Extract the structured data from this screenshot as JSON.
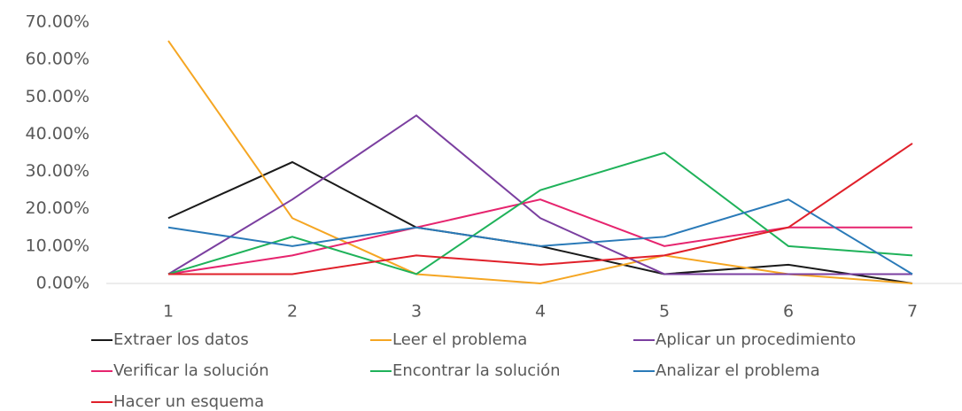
{
  "chart_data": {
    "type": "line",
    "categories": [
      "1",
      "2",
      "3",
      "4",
      "5",
      "6",
      "7"
    ],
    "ylim": [
      0,
      70
    ],
    "yticks": [
      {
        "value": 0,
        "label": "0.00%"
      },
      {
        "value": 10,
        "label": "10.00%"
      },
      {
        "value": 20,
        "label": "20.00%"
      },
      {
        "value": 30,
        "label": "30.00%"
      },
      {
        "value": 40,
        "label": "40.00%"
      },
      {
        "value": 50,
        "label": "50.00%"
      },
      {
        "value": 60,
        "label": "60.00%"
      },
      {
        "value": 70,
        "label": "70.00%"
      }
    ],
    "grid": false,
    "legend": "bottom",
    "series": [
      {
        "name": "Extraer los datos",
        "color": "#1a1a1a",
        "values": [
          17.5,
          32.5,
          15,
          10,
          2.5,
          5,
          0
        ]
      },
      {
        "name": "Leer el problema",
        "color": "#f5a623",
        "values": [
          65,
          17.5,
          2.5,
          0,
          7.5,
          2.5,
          0
        ]
      },
      {
        "name": "Aplicar un procedimiento",
        "color": "#7b3fa0",
        "values": [
          2.5,
          22.5,
          45,
          17.5,
          2.5,
          2.5,
          2.5
        ]
      },
      {
        "name": "Verificar la solución",
        "color": "#e6246e",
        "values": [
          2.5,
          7.5,
          15,
          22.5,
          10,
          15,
          15
        ]
      },
      {
        "name": "Encontrar la solución",
        "color": "#1fb25a",
        "values": [
          2.5,
          12.5,
          2.5,
          25,
          35,
          10,
          7.5
        ]
      },
      {
        "name": "Analizar el problema",
        "color": "#2a7ab8",
        "values": [
          15,
          10,
          15,
          10,
          12.5,
          22.5,
          2.5
        ]
      },
      {
        "name": "Hacer un esquema",
        "color": "#e0202a",
        "values": [
          2.5,
          2.5,
          7.5,
          5,
          7.5,
          15,
          37.5
        ]
      }
    ]
  }
}
